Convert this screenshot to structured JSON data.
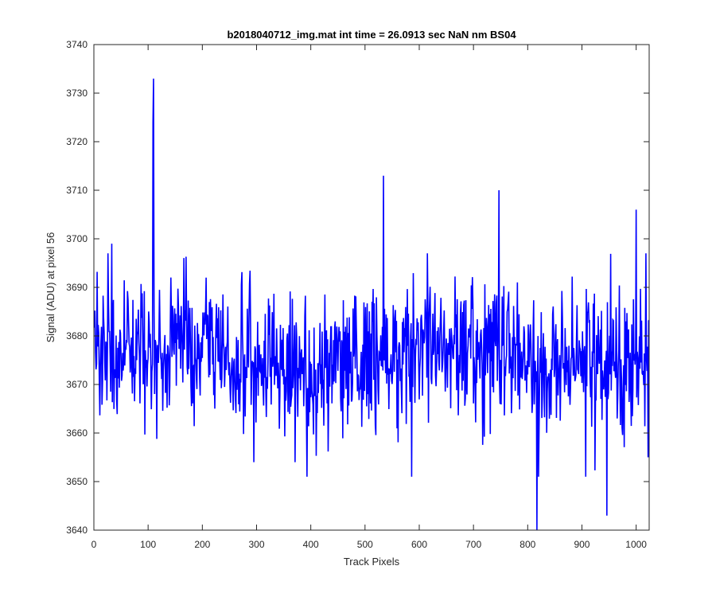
{
  "chart_data": {
    "type": "line",
    "title": "b2018040712_img.mat int time = 26.0913 sec   NaN nm BS04",
    "xlabel": "Track Pixels",
    "ylabel": "Signal (ADU) at pixel 56",
    "xlim": [
      0,
      1024
    ],
    "ylim": [
      3640,
      3740
    ],
    "x_ticks": [
      0,
      100,
      200,
      300,
      400,
      500,
      600,
      700,
      800,
      900,
      1000
    ],
    "y_ticks": [
      3640,
      3650,
      3660,
      3670,
      3680,
      3690,
      3700,
      3710,
      3720,
      3730,
      3740
    ],
    "grid": false,
    "legend": "none",
    "line_color": "#0000ff",
    "series": [
      {
        "baseline": 3676,
        "noise_std": 7,
        "n_points": 1024,
        "x_start": 1,
        "x_end": 1024,
        "spikes": [
          {
            "x": 110,
            "y": 3733
          },
          {
            "x": 109,
            "y": 3724
          },
          {
            "x": 534,
            "y": 3713
          },
          {
            "x": 747,
            "y": 3710
          },
          {
            "x": 1000,
            "y": 3706
          },
          {
            "x": 1018,
            "y": 3697
          },
          {
            "x": 33,
            "y": 3699
          },
          {
            "x": 295,
            "y": 3654
          },
          {
            "x": 371,
            "y": 3654
          },
          {
            "x": 393,
            "y": 3651
          },
          {
            "x": 586,
            "y": 3651
          },
          {
            "x": 817,
            "y": 3640
          },
          {
            "x": 820,
            "y": 3651
          },
          {
            "x": 907,
            "y": 3651
          },
          {
            "x": 946,
            "y": 3643
          },
          {
            "x": 1022,
            "y": 3655
          }
        ]
      }
    ]
  }
}
